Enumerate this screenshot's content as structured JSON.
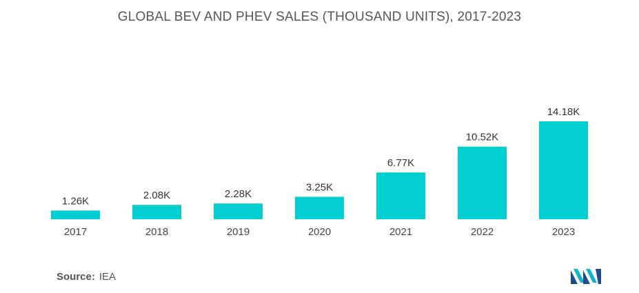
{
  "chart_data": {
    "type": "bar",
    "title": "GLOBAL BEV AND PHEV SALES (THOUSAND UNITS), 2017-2023",
    "categories": [
      "2017",
      "2018",
      "2019",
      "2020",
      "2021",
      "2022",
      "2023"
    ],
    "values": [
      1.26,
      2.08,
      2.28,
      3.25,
      6.77,
      10.52,
      14.18
    ],
    "data_labels": [
      "1.26K",
      "2.08K",
      "2.28K",
      "3.25K",
      "6.77K",
      "10.52K",
      "14.18K"
    ],
    "xlabel": "",
    "ylabel": "",
    "ylim": [
      0,
      14.18
    ],
    "grid": false,
    "legend": "none",
    "bar_color": "#00CED1"
  },
  "source": {
    "label": "Source:",
    "value": "IEA"
  },
  "logo": {
    "icon": "mordor-intelligence-logo-icon",
    "colors": [
      "#1e4b8c",
      "#12b5c8"
    ]
  }
}
